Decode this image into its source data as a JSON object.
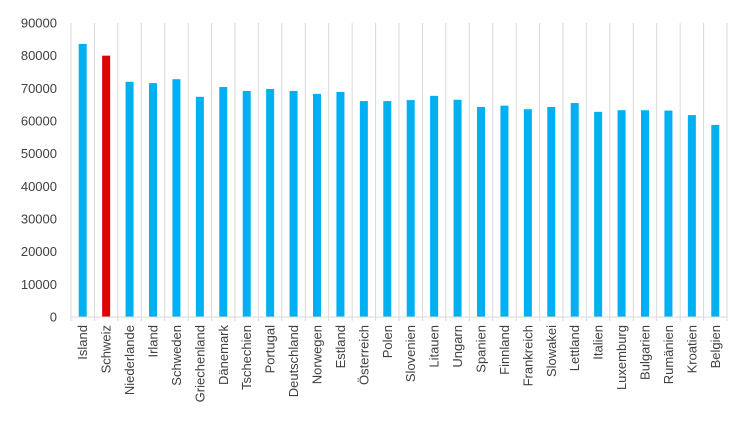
{
  "chart_data": {
    "type": "bar",
    "title": "",
    "xlabel": "",
    "ylabel": "",
    "ylim": [
      0,
      90000
    ],
    "yticks": [
      0,
      10000,
      20000,
      30000,
      40000,
      50000,
      60000,
      70000,
      80000,
      90000
    ],
    "grid": "vertical category separators",
    "legend": "none",
    "colors": {
      "default": "#00b0f0",
      "highlight": "#e00000",
      "axis": "#d9d9d9",
      "text": "#404040"
    },
    "highlight_category": "Schweiz",
    "categories": [
      "Island",
      "Schweiz",
      "Niederlande",
      "Irland",
      "Schweden",
      "Griechenland",
      "Dänemark",
      "Tschechien",
      "Portugal",
      "Deutschland",
      "Norwegen",
      "Estland",
      "Österreich",
      "Polen",
      "Slovenien",
      "Litauen",
      "Ungarn",
      "Spanien",
      "Finnland",
      "Frankreich",
      "Slowakei",
      "Lettland",
      "Italien",
      "Luxemburg",
      "Bulgarien",
      "Rumänien",
      "Kroatien",
      "Belgien"
    ],
    "values": [
      83600,
      80000,
      72000,
      71600,
      72800,
      67400,
      70400,
      69200,
      69800,
      69200,
      68300,
      68900,
      66100,
      66100,
      66400,
      67700,
      66500,
      64300,
      64700,
      63600,
      64300,
      65500,
      62800,
      63300,
      63300,
      63200,
      61800,
      58800
    ]
  }
}
